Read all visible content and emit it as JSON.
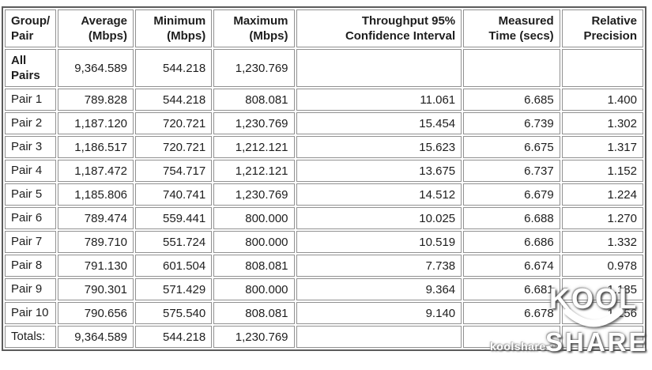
{
  "chart_data": {
    "type": "table",
    "header": [
      {
        "key": "group-pair",
        "label": "Group/\nPair"
      },
      {
        "key": "average-mbps",
        "label": "Average\n(Mbps)"
      },
      {
        "key": "minimum-mbps",
        "label": "Minimum\n(Mbps)"
      },
      {
        "key": "maximum-mbps",
        "label": "Maximum\n(Mbps)"
      },
      {
        "key": "throughput-95-confidence-interval",
        "label": "Throughput 95%\nConfidence Interval"
      },
      {
        "key": "measured-time-secs",
        "label": "Measured\nTime (secs)"
      },
      {
        "key": "relative-precision",
        "label": "Relative\nPrecision"
      }
    ],
    "rows": [
      {
        "key": "all-pairs",
        "label": "All\nPairs",
        "bold": true,
        "tall": true,
        "values": [
          "9,364.589",
          "544.218",
          "1,230.769",
          "",
          "",
          ""
        ]
      },
      {
        "key": "pair-1",
        "label": "Pair 1",
        "values": [
          "789.828",
          "544.218",
          "808.081",
          "11.061",
          "6.685",
          "1.400"
        ]
      },
      {
        "key": "pair-2",
        "label": "Pair 2",
        "values": [
          "1,187.120",
          "720.721",
          "1,230.769",
          "15.454",
          "6.739",
          "1.302"
        ]
      },
      {
        "key": "pair-3",
        "label": "Pair 3",
        "values": [
          "1,186.517",
          "720.721",
          "1,212.121",
          "15.623",
          "6.675",
          "1.317"
        ]
      },
      {
        "key": "pair-4",
        "label": "Pair 4",
        "values": [
          "1,187.472",
          "754.717",
          "1,212.121",
          "13.675",
          "6.737",
          "1.152"
        ]
      },
      {
        "key": "pair-5",
        "label": "Pair 5",
        "values": [
          "1,185.806",
          "740.741",
          "1,230.769",
          "14.512",
          "6.679",
          "1.224"
        ]
      },
      {
        "key": "pair-6",
        "label": "Pair 6",
        "values": [
          "789.474",
          "559.441",
          "800.000",
          "10.025",
          "6.688",
          "1.270"
        ]
      },
      {
        "key": "pair-7",
        "label": "Pair 7",
        "values": [
          "789.710",
          "551.724",
          "800.000",
          "10.519",
          "6.686",
          "1.332"
        ]
      },
      {
        "key": "pair-8",
        "label": "Pair 8",
        "values": [
          "791.130",
          "601.504",
          "808.081",
          "7.738",
          "6.674",
          "0.978"
        ]
      },
      {
        "key": "pair-9",
        "label": "Pair 9",
        "values": [
          "790.301",
          "571.429",
          "800.000",
          "9.364",
          "6.681",
          "1.185"
        ]
      },
      {
        "key": "pair-10",
        "label": "Pair 10",
        "values": [
          "790.656",
          "575.540",
          "808.081",
          "9.140",
          "6.678",
          "1.156"
        ]
      },
      {
        "key": "totals",
        "label": "Totals:",
        "values": [
          "9,364.589",
          "544.218",
          "1,230.769",
          "",
          "",
          ""
        ]
      }
    ]
  },
  "watermark": {
    "site": "koolshare.cn",
    "logo_line1": "KOOL",
    "logo_line2": "SHARE"
  },
  "colors": {
    "cell_border": "#919191",
    "outer_border": "#5c5c5c",
    "text": "#1e1e1e",
    "watermark": "#ffffff"
  }
}
